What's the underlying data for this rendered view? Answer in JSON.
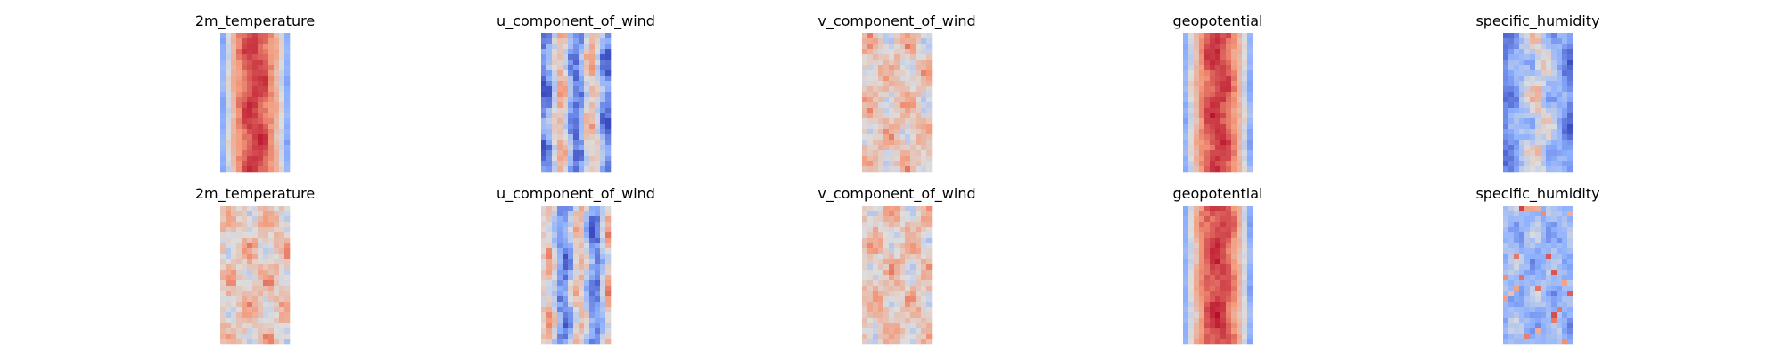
{
  "chart_data": {
    "type": "heatmap",
    "colormap": "coolwarm",
    "grid": false,
    "axes_visible": false,
    "rows": 2,
    "columns": 5,
    "panels": [
      {
        "title": "2m_temperature",
        "pattern": "band_hot"
      },
      {
        "title": "u_component_of_wind",
        "pattern": "streaks_cool"
      },
      {
        "title": "v_component_of_wind",
        "pattern": "noisy_warm"
      },
      {
        "title": "geopotential",
        "pattern": "band_hot"
      },
      {
        "title": "specific_humidity",
        "pattern": "center_mixed_cool"
      },
      {
        "title": "2m_temperature",
        "pattern": "noisy_warm"
      },
      {
        "title": "u_component_of_wind",
        "pattern": "streaks_cool"
      },
      {
        "title": "v_component_of_wind",
        "pattern": "noisy_warm"
      },
      {
        "title": "geopotential",
        "pattern": "band_hot"
      },
      {
        "title": "specific_humidity",
        "pattern": "cool_speckle"
      }
    ]
  }
}
